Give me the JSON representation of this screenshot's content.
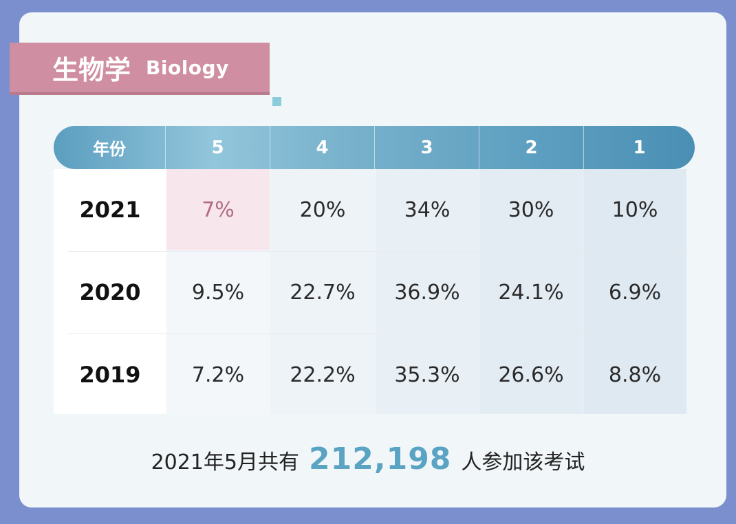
{
  "title": {
    "zh": "生物学",
    "en": "Biology"
  },
  "table": {
    "header": [
      "年份",
      "5",
      "4",
      "3",
      "2",
      "1"
    ],
    "rows": [
      {
        "year": "2021",
        "cells": [
          "7%",
          "20%",
          "34%",
          "30%",
          "10%"
        ]
      },
      {
        "year": "2020",
        "cells": [
          "9.5%",
          "22.7%",
          "36.9%",
          "24.1%",
          "6.9%"
        ]
      },
      {
        "year": "2019",
        "cells": [
          "7.2%",
          "22.2%",
          "35.3%",
          "26.6%",
          "8.8%"
        ]
      }
    ]
  },
  "footer": {
    "prefix": "2021年5月共有",
    "count": "212,198",
    "suffix": "人参加该考试"
  },
  "colors": {
    "background": "#7b8fcf",
    "banner": "#cf8ea1",
    "header": "#5c9ebf",
    "highlight_text": "#b16d82",
    "highlight_bg": "#f7e6ec",
    "accent_number": "#5aa3c3"
  },
  "chart_data": {
    "type": "table",
    "title": "生物学 Biology",
    "columns": [
      "年份",
      "5",
      "4",
      "3",
      "2",
      "1"
    ],
    "rows": [
      [
        "2021",
        "7%",
        "20%",
        "34%",
        "30%",
        "10%"
      ],
      [
        "2020",
        "9.5%",
        "22.7%",
        "36.9%",
        "24.1%",
        "6.9%"
      ],
      [
        "2019",
        "7.2%",
        "22.2%",
        "35.3%",
        "26.6%",
        "8.8%"
      ]
    ],
    "series": [
      {
        "name": "2021",
        "values": [
          7,
          20,
          34,
          30,
          10
        ]
      },
      {
        "name": "2020",
        "values": [
          9.5,
          22.7,
          36.9,
          24.1,
          6.9
        ]
      },
      {
        "name": "2019",
        "values": [
          7.2,
          22.2,
          35.3,
          26.6,
          8.8
        ]
      }
    ],
    "categories": [
      "5",
      "4",
      "3",
      "2",
      "1"
    ],
    "highlight": {
      "year": "2021",
      "score": "5"
    }
  }
}
